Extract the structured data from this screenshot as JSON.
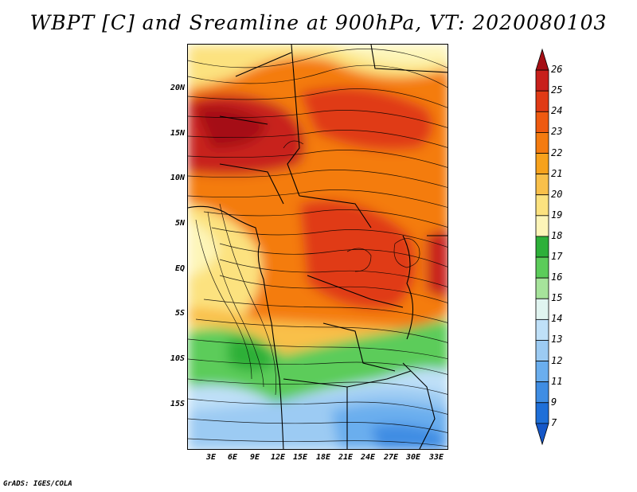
{
  "title": "WBPT [C] and Sreamline at 900hPa, VT: 2020080103",
  "lat_labels": [
    "20N",
    "15N",
    "10N",
    "5N",
    "EQ",
    "5S",
    "10S",
    "15S"
  ],
  "lon_labels": [
    "3E",
    "6E",
    "9E",
    "12E",
    "15E",
    "18E",
    "21E",
    "24E",
    "27E",
    "30E",
    "33E"
  ],
  "colorbar": {
    "labels": [
      "26",
      "25",
      "24",
      "23",
      "22",
      "21",
      "20",
      "19",
      "18",
      "17",
      "16",
      "15",
      "14",
      "13",
      "12",
      "11",
      "9",
      "7"
    ],
    "colors": [
      "#a50f15",
      "#c8201b",
      "#e03a15",
      "#ef5a10",
      "#f47b10",
      "#f7a21c",
      "#f9c04a",
      "#fce27f",
      "#fdf5b8",
      "#2db039",
      "#5ccc5a",
      "#a6e39b",
      "#e0f4f0",
      "#bfe0f8",
      "#9ccbf3",
      "#6aaeee",
      "#3f8de3",
      "#1e6fd8",
      "#1557c8"
    ]
  },
  "footer": "GrADS: IGES/COLA"
}
